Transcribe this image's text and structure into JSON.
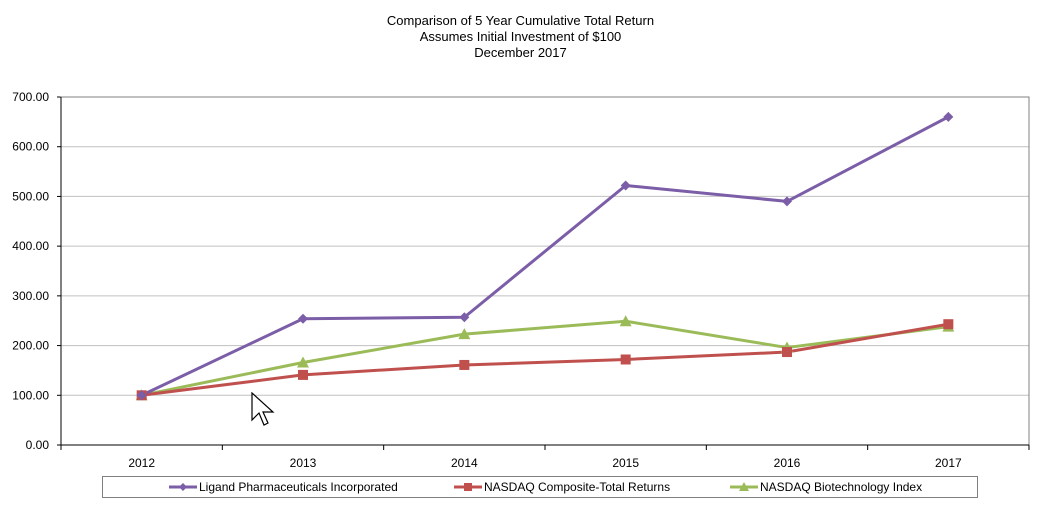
{
  "title": {
    "line1": "Comparison of 5 Year Cumulative Total Return",
    "line2": "Assumes Initial Investment of $100",
    "line3": "December 2017"
  },
  "colors": {
    "ligand": "#7b5ea7",
    "nasdaq_composite": "#c0504d",
    "nasdaq_biotech": "#9bbb59",
    "grid": "#c0c0c0",
    "axis": "#000000"
  },
  "chart_data": {
    "type": "line",
    "title": "Comparison of 5 Year Cumulative Total Return",
    "subtitle": "Assumes Initial Investment of $100 — December 2017",
    "xlabel": "",
    "ylabel": "",
    "categories": [
      "2012",
      "2013",
      "2014",
      "2015",
      "2016",
      "2017"
    ],
    "ylim": [
      0,
      700
    ],
    "yticks": [
      0,
      100,
      200,
      300,
      400,
      500,
      600,
      700
    ],
    "ytick_labels": [
      "0.00",
      "100.00",
      "200.00",
      "300.00",
      "400.00",
      "500.00",
      "600.00",
      "700.00"
    ],
    "grid": true,
    "legend_position": "bottom",
    "series": [
      {
        "name": "Ligand Pharmaceuticals Incorporated",
        "marker": "diamond",
        "color": "#7b5ea7",
        "values": [
          100,
          254,
          257,
          522,
          490,
          660
        ]
      },
      {
        "name": "NASDAQ Composite-Total Returns",
        "marker": "square",
        "color": "#c0504d",
        "values": [
          100,
          141,
          161,
          172,
          187,
          243
        ]
      },
      {
        "name": "NASDAQ Biotechnology Index",
        "marker": "triangle",
        "color": "#9bbb59",
        "values": [
          100,
          166,
          223,
          249,
          196,
          238
        ]
      }
    ]
  }
}
